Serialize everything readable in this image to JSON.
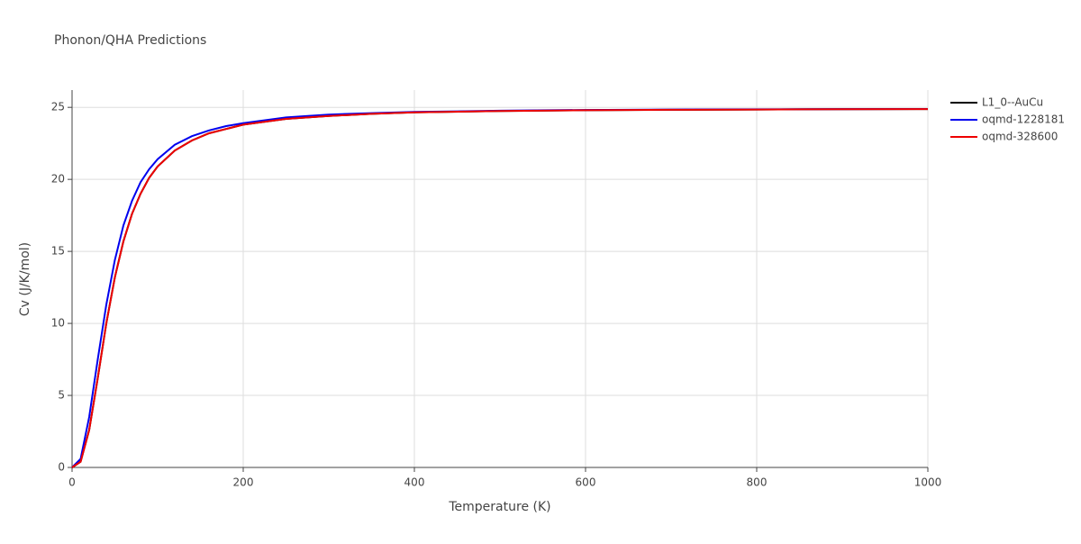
{
  "chart_data": {
    "type": "line",
    "title": "Phonon/QHA Predictions",
    "xlabel": "Temperature (K)",
    "ylabel": "Cv (J/K/mol)",
    "x": [
      0,
      10,
      20,
      30,
      40,
      50,
      60,
      70,
      80,
      90,
      100,
      120,
      140,
      160,
      180,
      200,
      250,
      300,
      350,
      400,
      500,
      600,
      700,
      800,
      900,
      1000
    ],
    "series": [
      {
        "name": "L1_0--AuCu",
        "color": "#000000",
        "values": [
          0,
          0.4,
          2.6,
          6.2,
          10.0,
          13.2,
          15.7,
          17.6,
          19.0,
          20.1,
          20.9,
          22.0,
          22.7,
          23.2,
          23.5,
          23.8,
          24.2,
          24.4,
          24.55,
          24.65,
          24.75,
          24.8,
          24.83,
          24.85,
          24.87,
          24.88
        ]
      },
      {
        "name": "oqmd-1228181",
        "color": "#0000ee",
        "values": [
          0,
          0.6,
          3.5,
          7.5,
          11.3,
          14.4,
          16.8,
          18.5,
          19.8,
          20.7,
          21.4,
          22.4,
          23.0,
          23.4,
          23.7,
          23.9,
          24.3,
          24.5,
          24.6,
          24.68,
          24.77,
          24.82,
          24.85,
          24.86,
          24.88,
          24.89
        ]
      },
      {
        "name": "oqmd-328600",
        "color": "#ee0000",
        "values": [
          0,
          0.4,
          2.6,
          6.2,
          10.0,
          13.2,
          15.7,
          17.6,
          19.0,
          20.1,
          20.9,
          22.0,
          22.7,
          23.2,
          23.5,
          23.8,
          24.2,
          24.4,
          24.55,
          24.65,
          24.75,
          24.8,
          24.83,
          24.85,
          24.87,
          24.88
        ]
      }
    ],
    "xlim": [
      0,
      1000
    ],
    "xticks": [
      0,
      200,
      400,
      600,
      800,
      1000
    ],
    "ylim": [
      0,
      26.2
    ],
    "yticks": [
      0,
      5,
      10,
      15,
      20,
      25
    ],
    "grid": true,
    "legend": "right"
  }
}
